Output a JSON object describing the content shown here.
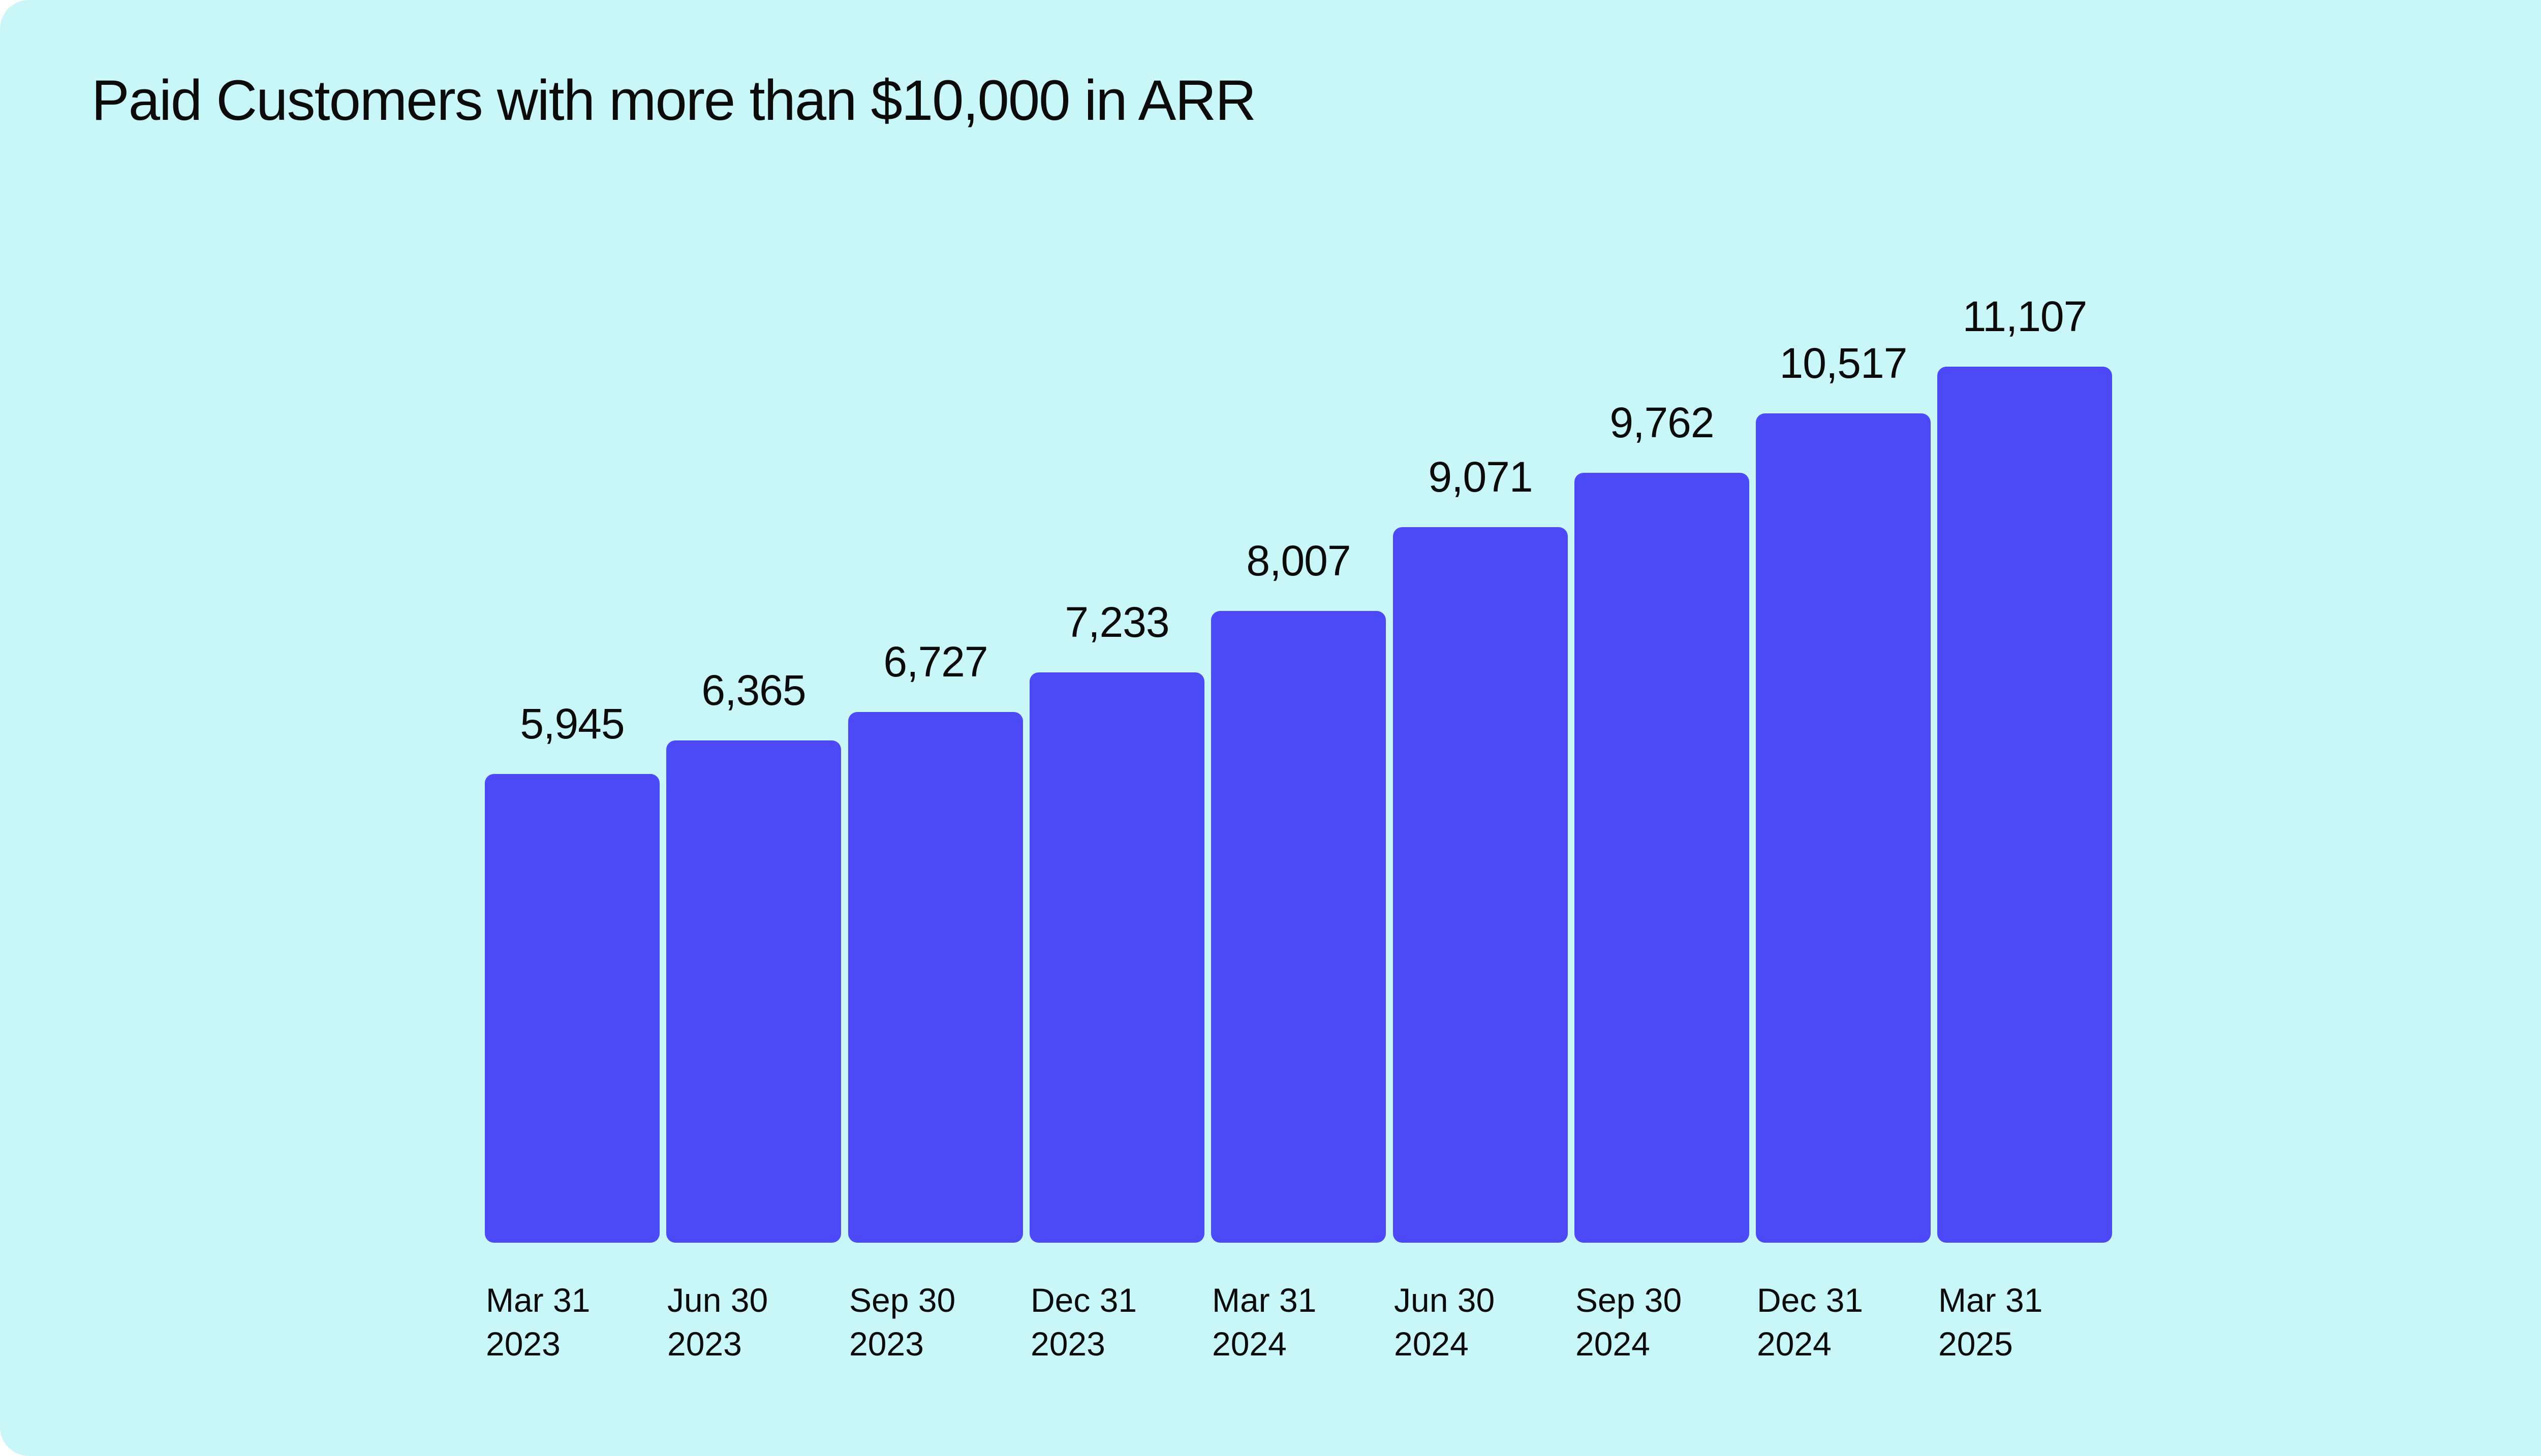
{
  "title": "Paid Customers with more than $10,000 in ARR",
  "colors": {
    "page_background": "#FFFFFF",
    "card_background": "#C9F6F8",
    "bar": "#4C49F7",
    "text": "#0B0B0B"
  },
  "chart_data": {
    "type": "bar",
    "title": "Paid Customers with more than $10,000 in ARR",
    "categories": [
      "Mar 31 2023",
      "Jun 30 2023",
      "Sep 30 2023",
      "Dec 31 2023",
      "Mar 31 2024",
      "Jun 30 2024",
      "Sep 30 2024",
      "Dec 31 2024",
      "Mar 31 2025"
    ],
    "category_lines": [
      [
        "Mar 31",
        "2023"
      ],
      [
        "Jun 30",
        "2023"
      ],
      [
        "Sep 30",
        "2023"
      ],
      [
        "Dec 31",
        "2023"
      ],
      [
        "Mar 31",
        "2024"
      ],
      [
        "Jun 30",
        "2024"
      ],
      [
        "Sep 30",
        "2024"
      ],
      [
        "Dec 31",
        "2024"
      ],
      [
        "Mar 31",
        "2025"
      ]
    ],
    "values": [
      5945,
      6365,
      6727,
      7233,
      8007,
      9071,
      9762,
      10517,
      11107
    ],
    "value_labels": [
      "5,945",
      "6,365",
      "6,727",
      "7,233",
      "8,007",
      "9,071",
      "9,762",
      "10,517",
      "11,107"
    ],
    "xlabel": "",
    "ylabel": "",
    "ylim": [
      0,
      11107
    ],
    "grid": false,
    "axis_lines": false,
    "legend": "none",
    "bar_label_position": "above-center",
    "x_label_alignment": "left"
  }
}
